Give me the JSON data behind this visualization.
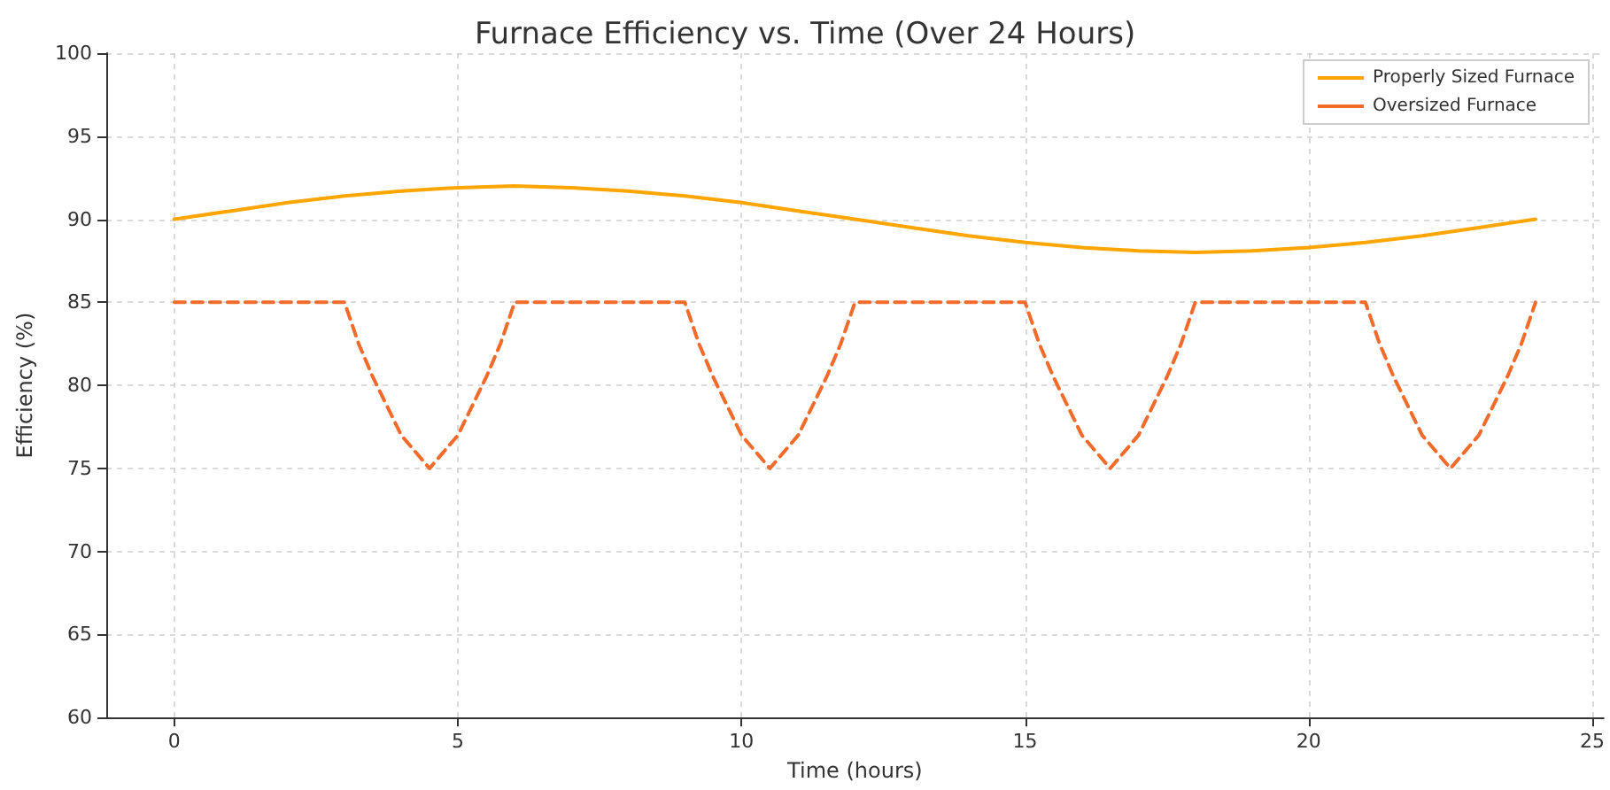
{
  "chart_data": {
    "type": "line",
    "title": "Furnace Efficiency vs. Time (Over 24 Hours)",
    "xlabel": "Time (hours)",
    "ylabel": "Efficiency (%)",
    "xlim": [
      -1.2,
      25.2
    ],
    "xticks": [
      0,
      5,
      10,
      15,
      20,
      25
    ],
    "ylim": [
      60,
      100
    ],
    "yticks": [
      60,
      65,
      70,
      75,
      80,
      85,
      90,
      95,
      100
    ],
    "grid": true,
    "legend": "top right",
    "marker": "none",
    "series": [
      {
        "name": "Properly Sized Furnace",
        "color": "#ffa500",
        "line_style": "solid",
        "x": [
          0,
          1,
          2,
          3,
          4,
          5,
          6,
          7,
          8,
          9,
          10,
          11,
          12,
          13,
          14,
          15,
          16,
          17,
          18,
          19,
          20,
          21,
          22,
          23,
          24
        ],
        "values": [
          90,
          90.5,
          91,
          91.4,
          91.7,
          91.9,
          92,
          91.9,
          91.7,
          91.4,
          91,
          90.5,
          90,
          89.5,
          89,
          88.6,
          88.3,
          88.1,
          88,
          88.1,
          88.3,
          88.6,
          89,
          89.5,
          90
        ]
      },
      {
        "name": "Oversized Furnace",
        "color": "#f26b2a",
        "line_style": "dashed",
        "x": [
          0,
          3,
          3.25,
          3.5,
          4,
          4.5,
          5,
          5.5,
          5.75,
          6,
          9,
          9.25,
          9.5,
          10,
          10.5,
          11,
          11.5,
          11.75,
          12,
          15,
          15.25,
          15.5,
          16,
          16.5,
          17,
          17.5,
          17.75,
          18,
          21,
          21.25,
          21.5,
          22,
          22.5,
          23,
          23.5,
          23.75,
          24
        ],
        "values": [
          85,
          85,
          82.5,
          80.5,
          77,
          75,
          77,
          80.5,
          82.5,
          85,
          85,
          82.5,
          80.5,
          77,
          75,
          77,
          80.5,
          82.5,
          85,
          85,
          82.5,
          80.5,
          77,
          75,
          77,
          80.5,
          82.5,
          85,
          85,
          82.5,
          80.5,
          77,
          75,
          77,
          80.5,
          82.5,
          85
        ]
      }
    ]
  }
}
